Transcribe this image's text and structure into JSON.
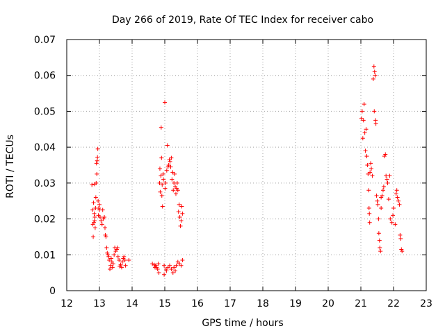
{
  "chart_data": {
    "type": "scatter",
    "title": "Day 266 of 2019, Rate Of TEC Index for receiver cabo",
    "xlabel": "GPS time / hours",
    "ylabel": "ROTI / TECUs",
    "xlim": [
      12,
      23
    ],
    "ylim": [
      0,
      0.07
    ],
    "grid": true,
    "marker": "+",
    "color": "#ff0000",
    "xticks": [
      12,
      13,
      14,
      15,
      16,
      17,
      18,
      19,
      20,
      21,
      22,
      23
    ],
    "xtick_labels": [
      "12",
      "13",
      "14",
      "15",
      "16",
      "17",
      "18",
      "19",
      "20",
      "21",
      "22",
      "23"
    ],
    "yticks": [
      0,
      0.01,
      0.02,
      0.03,
      0.04,
      0.05,
      0.06,
      0.07
    ],
    "ytick_labels": [
      "0",
      "0.01",
      "0.02",
      "0.03",
      "0.04",
      "0.05",
      "0.06",
      "0.07"
    ],
    "series": [
      {
        "name": "ROTI",
        "points": [
          [
            12.77,
            0.0295
          ],
          [
            12.79,
            0.0225
          ],
          [
            12.8,
            0.0185
          ],
          [
            12.81,
            0.015
          ],
          [
            12.82,
            0.0245
          ],
          [
            12.83,
            0.019
          ],
          [
            12.84,
            0.0215
          ],
          [
            12.85,
            0.0297
          ],
          [
            12.86,
            0.0205
          ],
          [
            12.87,
            0.0175
          ],
          [
            12.88,
            0.023
          ],
          [
            12.89,
            0.026
          ],
          [
            12.9,
            0.03
          ],
          [
            12.91,
            0.0355
          ],
          [
            12.92,
            0.0325
          ],
          [
            12.93,
            0.0362
          ],
          [
            12.94,
            0.0372
          ],
          [
            12.95,
            0.0395
          ],
          [
            12.96,
            0.025
          ],
          [
            12.97,
            0.021
          ],
          [
            12.98,
            0.023
          ],
          [
            13.0,
            0.024
          ],
          [
            13.02,
            0.0205
          ],
          [
            13.05,
            0.0195
          ],
          [
            13.08,
            0.0185
          ],
          [
            13.1,
            0.0225
          ],
          [
            13.12,
            0.02
          ],
          [
            13.15,
            0.0205
          ],
          [
            13.17,
            0.0175
          ],
          [
            13.18,
            0.0155
          ],
          [
            13.2,
            0.015
          ],
          [
            13.22,
            0.012
          ],
          [
            13.24,
            0.0105
          ],
          [
            13.26,
            0.01
          ],
          [
            13.28,
            0.0095
          ],
          [
            13.3,
            0.0085
          ],
          [
            13.32,
            0.006
          ],
          [
            13.34,
            0.007
          ],
          [
            13.36,
            0.009
          ],
          [
            13.38,
            0.008
          ],
          [
            13.4,
            0.0065
          ],
          [
            13.42,
            0.0075
          ],
          [
            13.45,
            0.01
          ],
          [
            13.47,
            0.012
          ],
          [
            13.5,
            0.011
          ],
          [
            13.53,
            0.0115
          ],
          [
            13.55,
            0.012
          ],
          [
            13.57,
            0.0095
          ],
          [
            13.6,
            0.0085
          ],
          [
            13.62,
            0.0068
          ],
          [
            13.65,
            0.0072
          ],
          [
            13.68,
            0.0065
          ],
          [
            13.7,
            0.008
          ],
          [
            13.73,
            0.009
          ],
          [
            13.75,
            0.0095
          ],
          [
            13.78,
            0.0085
          ],
          [
            13.8,
            0.007
          ],
          [
            14.62,
            0.0075
          ],
          [
            14.68,
            0.0072
          ],
          [
            14.72,
            0.007
          ],
          [
            14.75,
            0.0065
          ],
          [
            14.78,
            0.006
          ],
          [
            14.8,
            0.0075
          ],
          [
            14.82,
            0.005
          ],
          [
            14.84,
            0.03
          ],
          [
            14.85,
            0.034
          ],
          [
            14.86,
            0.0275
          ],
          [
            14.88,
            0.032
          ],
          [
            14.89,
            0.0455
          ],
          [
            14.9,
            0.037
          ],
          [
            14.91,
            0.0265
          ],
          [
            14.92,
            0.0295
          ],
          [
            14.93,
            0.0235
          ],
          [
            14.95,
            0.0325
          ],
          [
            14.96,
            0.031
          ],
          [
            14.98,
            0.007
          ],
          [
            15.0,
            0.0525
          ],
          [
            15.01,
            0.0285
          ],
          [
            15.02,
            0.03
          ],
          [
            15.04,
            0.006
          ],
          [
            15.06,
            0.0335
          ],
          [
            15.08,
            0.0405
          ],
          [
            15.1,
            0.0345
          ],
          [
            15.12,
            0.035
          ],
          [
            15.14,
            0.0365
          ],
          [
            15.16,
            0.036
          ],
          [
            15.18,
            0.0345
          ],
          [
            15.2,
            0.037
          ],
          [
            15.22,
            0.031
          ],
          [
            15.24,
            0.033
          ],
          [
            15.26,
            0.028
          ],
          [
            15.28,
            0.03
          ],
          [
            15.3,
            0.0325
          ],
          [
            15.32,
            0.029
          ],
          [
            15.34,
            0.027
          ],
          [
            15.36,
            0.0285
          ],
          [
            15.38,
            0.03
          ],
          [
            15.4,
            0.028
          ],
          [
            15.42,
            0.022
          ],
          [
            15.44,
            0.024
          ],
          [
            15.46,
            0.0205
          ],
          [
            15.48,
            0.018
          ],
          [
            15.5,
            0.0195
          ],
          [
            15.52,
            0.0235
          ],
          [
            15.54,
            0.0215
          ],
          [
            15.2,
            0.006
          ],
          [
            15.25,
            0.005
          ],
          [
            15.28,
            0.0065
          ],
          [
            15.32,
            0.0055
          ],
          [
            15.35,
            0.007
          ],
          [
            15.4,
            0.008
          ],
          [
            15.45,
            0.0075
          ],
          [
            15.5,
            0.007
          ],
          [
            15.54,
            0.0085
          ],
          [
            15.1,
            0.0065
          ],
          [
            15.15,
            0.007
          ],
          [
            21.02,
            0.048
          ],
          [
            21.04,
            0.05
          ],
          [
            21.06,
            0.0425
          ],
          [
            21.08,
            0.0475
          ],
          [
            21.1,
            0.052
          ],
          [
            21.12,
            0.044
          ],
          [
            21.14,
            0.039
          ],
          [
            21.16,
            0.045
          ],
          [
            21.18,
            0.0375
          ],
          [
            21.2,
            0.035
          ],
          [
            21.22,
            0.0325
          ],
          [
            21.24,
            0.028
          ],
          [
            21.25,
            0.023
          ],
          [
            21.26,
            0.0215
          ],
          [
            21.27,
            0.019
          ],
          [
            21.28,
            0.033
          ],
          [
            21.3,
            0.0355
          ],
          [
            21.32,
            0.034
          ],
          [
            21.35,
            0.032
          ],
          [
            21.38,
            0.059
          ],
          [
            21.4,
            0.0625
          ],
          [
            21.41,
            0.05
          ],
          [
            21.42,
            0.061
          ],
          [
            21.44,
            0.06
          ],
          [
            21.45,
            0.0475
          ],
          [
            21.46,
            0.0465
          ],
          [
            21.48,
            0.0265
          ],
          [
            21.5,
            0.025
          ],
          [
            21.52,
            0.024
          ],
          [
            21.54,
            0.02
          ],
          [
            21.55,
            0.016
          ],
          [
            21.57,
            0.014
          ],
          [
            21.58,
            0.012
          ],
          [
            21.6,
            0.011
          ],
          [
            21.62,
            0.023
          ],
          [
            21.65,
            0.0265
          ],
          [
            21.68,
            0.028
          ],
          [
            21.7,
            0.029
          ],
          [
            21.72,
            0.0375
          ],
          [
            21.75,
            0.038
          ],
          [
            21.77,
            0.032
          ],
          [
            21.8,
            0.031
          ],
          [
            21.82,
            0.03
          ],
          [
            21.85,
            0.0255
          ],
          [
            21.88,
            0.032
          ],
          [
            21.9,
            0.02
          ],
          [
            21.95,
            0.019
          ],
          [
            21.98,
            0.021
          ],
          [
            22.0,
            0.023
          ],
          [
            22.05,
            0.0185
          ],
          [
            22.08,
            0.027
          ],
          [
            22.1,
            0.028
          ],
          [
            22.12,
            0.026
          ],
          [
            22.15,
            0.025
          ],
          [
            22.18,
            0.024
          ],
          [
            22.2,
            0.0155
          ],
          [
            22.22,
            0.0145
          ],
          [
            22.24,
            0.0115
          ],
          [
            22.26,
            0.011
          ],
          [
            13.9,
            0.0085
          ],
          [
            14.98,
            0.0045
          ],
          [
            15.05,
            0.0055
          ],
          [
            14.7,
            0.0065
          ],
          [
            12.85,
            0.0195
          ],
          [
            13.0,
            0.0225
          ],
          [
            21.62,
            0.026
          ]
        ]
      }
    ]
  }
}
